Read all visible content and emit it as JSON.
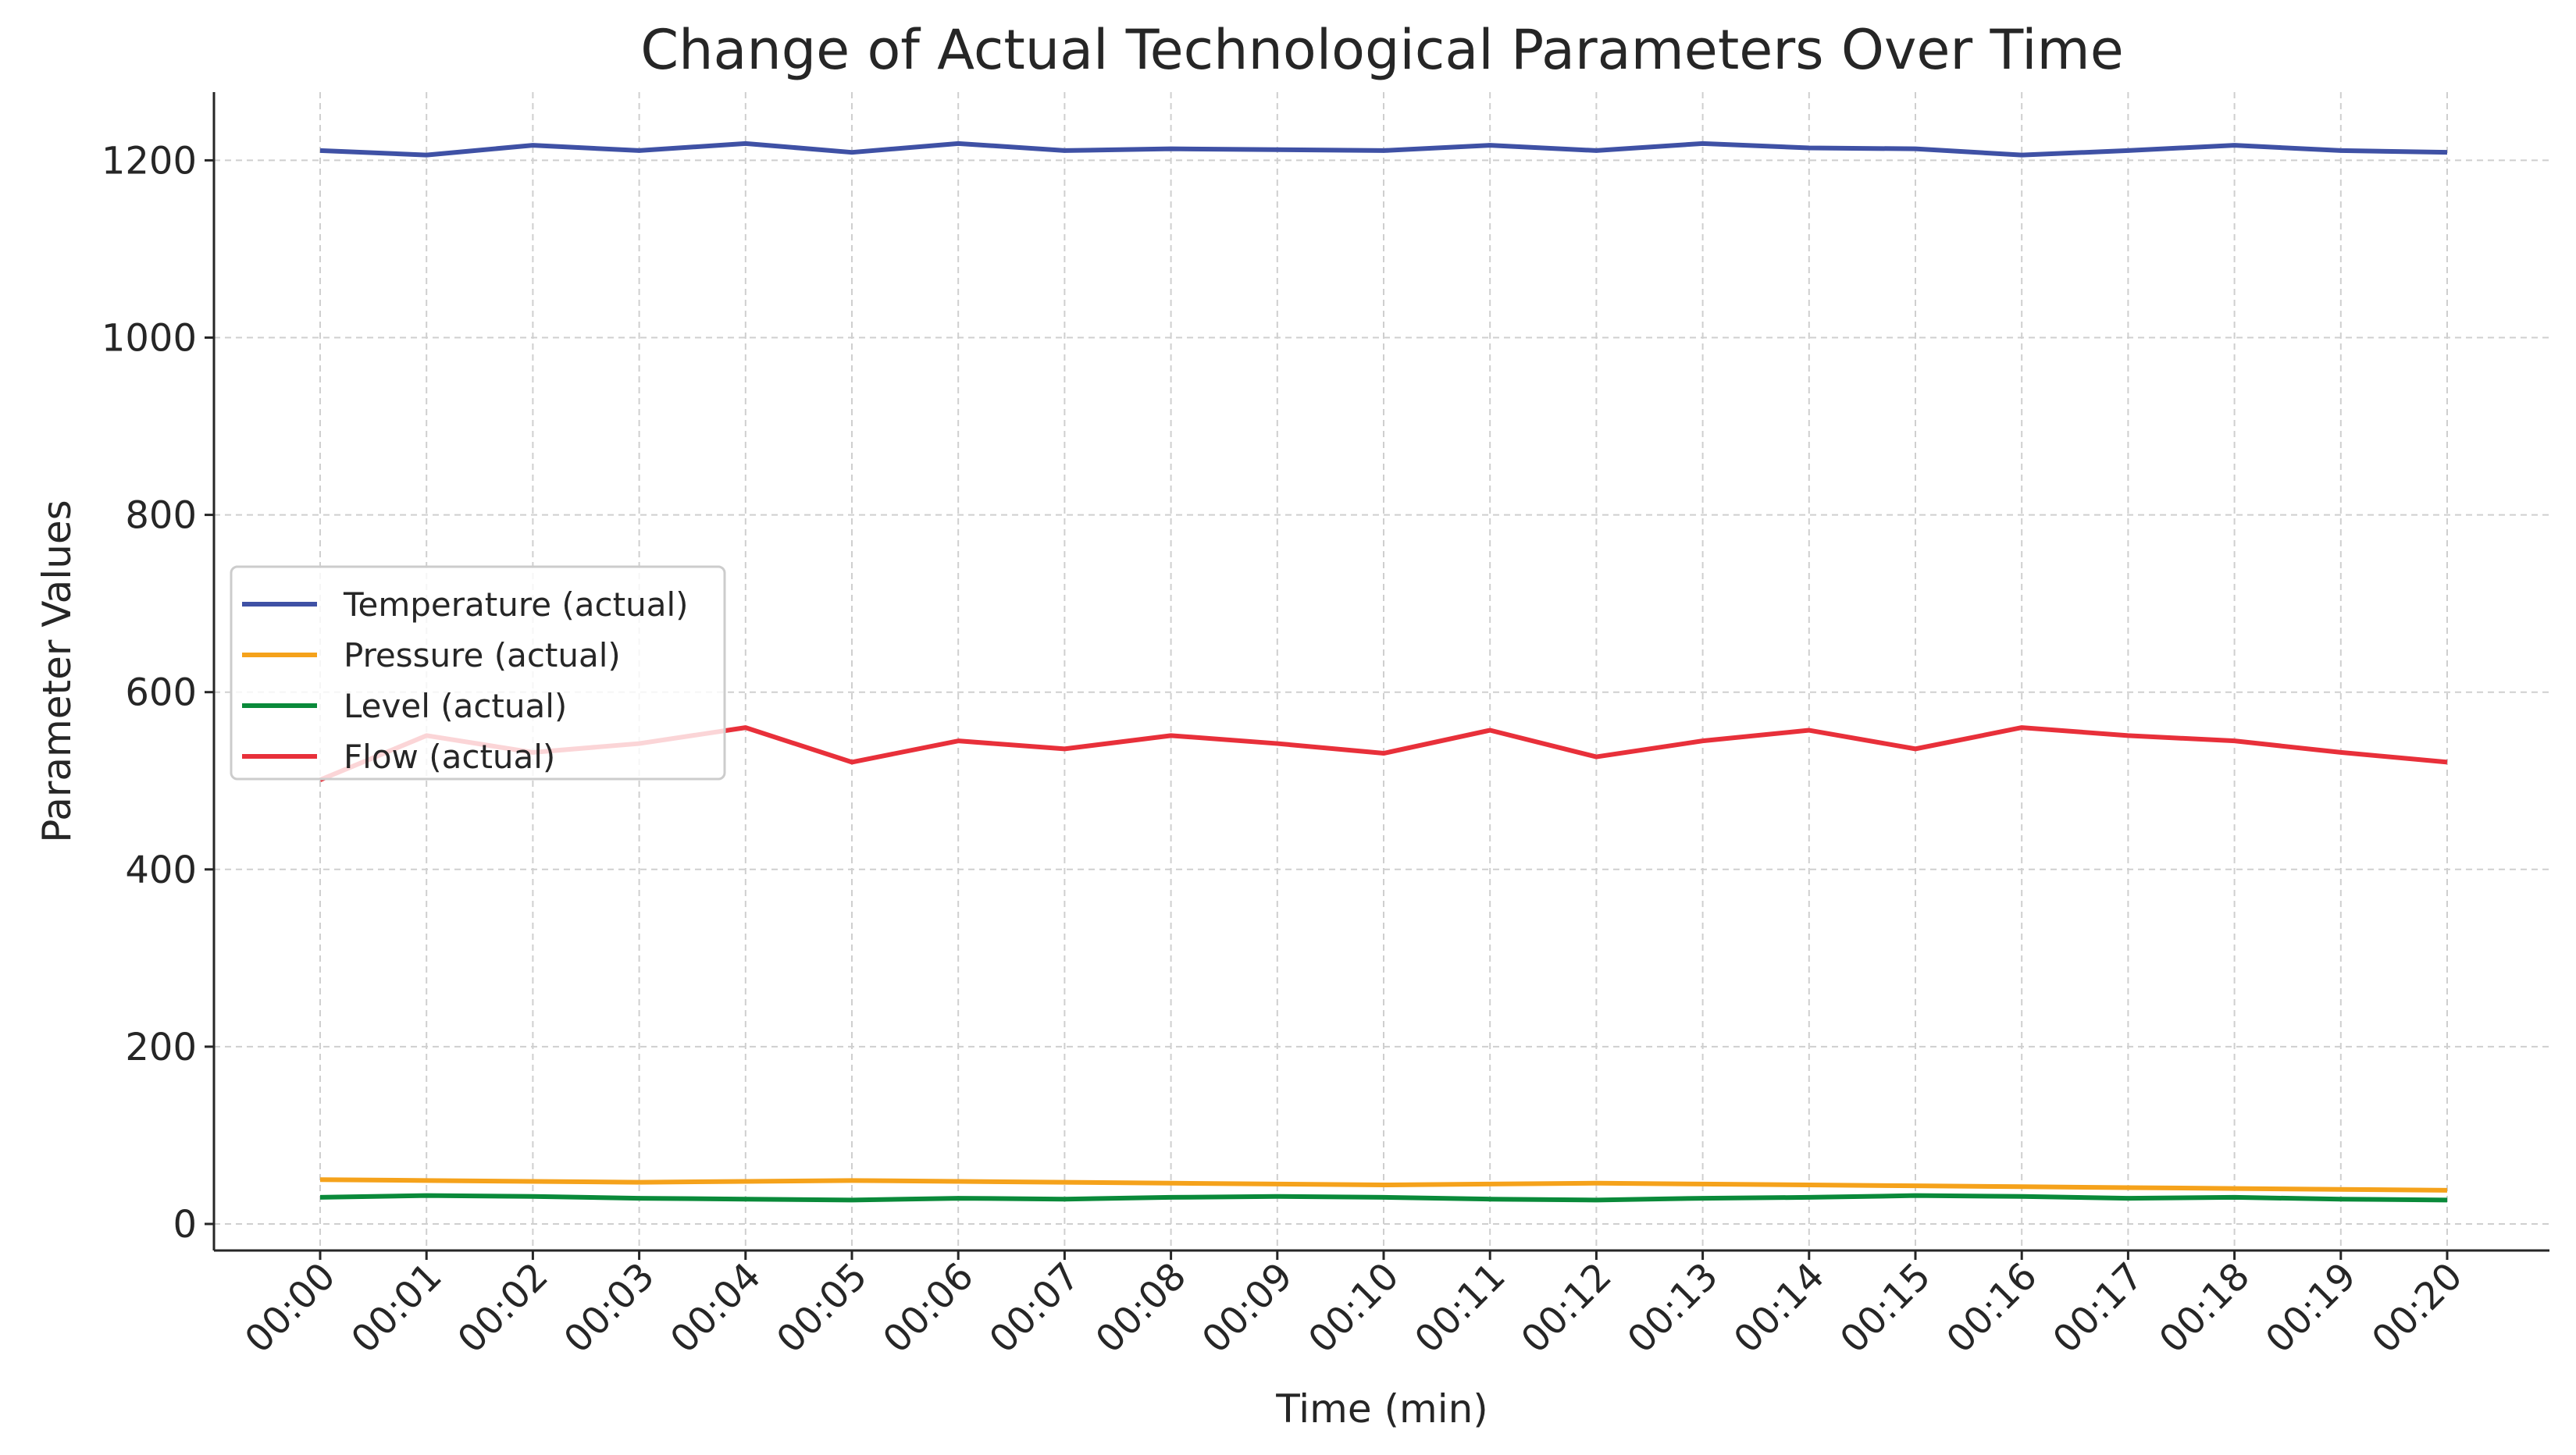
{
  "chart_data": {
    "type": "line",
    "title": "Change of Actual Technological Parameters Over Time",
    "xlabel": "Time (min)",
    "ylabel": "Parameter Values",
    "ylim": [
      -30,
      1280
    ],
    "yticks": [
      0,
      200,
      400,
      600,
      800,
      1000,
      1200
    ],
    "grid": true,
    "legend_position": "center left",
    "categories": [
      "00:00",
      "00:01",
      "00:02",
      "00:03",
      "00:04",
      "00:05",
      "00:06",
      "00:07",
      "00:08",
      "00:09",
      "00:10",
      "00:11",
      "00:12",
      "00:13",
      "00:14",
      "00:15",
      "00:16",
      "00:17",
      "00:18",
      "00:19",
      "00:20"
    ],
    "series": [
      {
        "name": "Temperature (actual)",
        "color": "#3f51a5",
        "values": [
          1211,
          1206,
          1217,
          1211,
          1219,
          1209,
          1219,
          1211,
          1213,
          1212,
          1211,
          1217,
          1211,
          1219,
          1214,
          1213,
          1206,
          1211,
          1217,
          1211,
          1209
        ]
      },
      {
        "name": "Pressure (actual)",
        "color": "#f5a21b",
        "values": [
          50,
          49,
          48,
          47,
          48,
          49,
          48,
          47,
          46,
          45,
          44,
          45,
          46,
          45,
          44,
          43,
          42,
          41,
          40,
          39,
          38
        ]
      },
      {
        "name": "Level (actual)",
        "color": "#0a8a3a",
        "values": [
          30,
          32,
          31,
          29,
          28,
          27,
          29,
          28,
          30,
          31,
          30,
          28,
          27,
          29,
          30,
          32,
          31,
          29,
          30,
          28,
          27
        ]
      },
      {
        "name": "Flow (actual)",
        "color": "#e8303a",
        "values": [
          501,
          551,
          532,
          542,
          560,
          521,
          545,
          536,
          551,
          542,
          531,
          557,
          527,
          545,
          557,
          536,
          560,
          551,
          545,
          532,
          521
        ]
      }
    ]
  }
}
